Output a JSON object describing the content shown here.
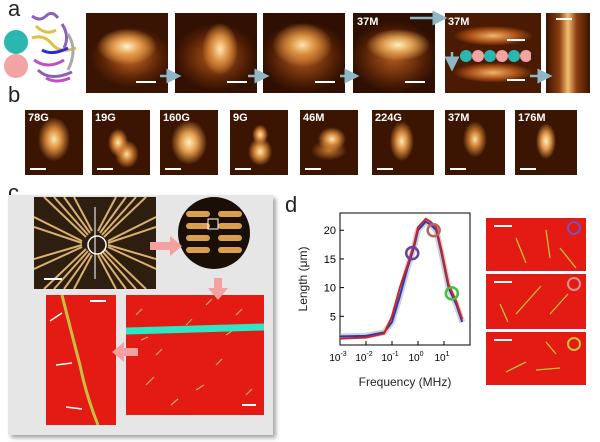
{
  "panel_labels": {
    "a": "a",
    "b": "b",
    "c": "c",
    "d": "d"
  },
  "row_a": {
    "tags": {
      "frame4": "37M",
      "frame5": "37M"
    }
  },
  "row_b": {
    "frames": [
      "78G",
      "19G",
      "160G",
      "9G",
      "46M",
      "224G",
      "37M",
      "176M"
    ]
  },
  "plot": {
    "ylabel": "Length (μm)",
    "xlabel": "Frequency (MHz)",
    "yticks": [
      "5",
      "10",
      "15",
      "20"
    ],
    "xticks": [
      "10",
      "10",
      "10",
      "10",
      "10"
    ],
    "xtick_exps": [
      "-3",
      "-2",
      "-1",
      "0",
      "1"
    ],
    "series_colors": [
      "#1e3cc8",
      "#d42020",
      "#b0b0b0"
    ],
    "marker_colors": [
      "#6a3fa0",
      "#c06060",
      "#3ec23e"
    ]
  },
  "chart_data": {
    "type": "line",
    "xlabel": "Frequency (MHz)",
    "ylabel": "Length (μm)",
    "xscale": "log",
    "xlim": [
      0.001,
      100
    ],
    "ylim": [
      0,
      23
    ],
    "series": [
      {
        "x": [
          0.001,
          0.01,
          0.05,
          0.1,
          0.2,
          0.4,
          0.7,
          1,
          2,
          3,
          5,
          8,
          15,
          30,
          50
        ],
        "y": [
          1.5,
          1.6,
          2.2,
          4,
          8.5,
          13.5,
          17,
          20,
          21.5,
          21,
          20,
          16,
          10,
          7,
          4
        ]
      },
      {
        "x": [
          0.001,
          0.01,
          0.05,
          0.1,
          0.2,
          0.4,
          0.7,
          1,
          2,
          3,
          5,
          8,
          15,
          30,
          50
        ],
        "y": [
          1.1,
          1.3,
          2,
          5,
          10,
          14,
          17.5,
          20.5,
          22,
          21.5,
          20.5,
          16.5,
          10.5,
          7.5,
          4.5
        ]
      }
    ],
    "markers": [
      {
        "x": 0.6,
        "y": 16
      },
      {
        "x": 4,
        "y": 20
      },
      {
        "x": 20,
        "y": 9
      }
    ]
  }
}
